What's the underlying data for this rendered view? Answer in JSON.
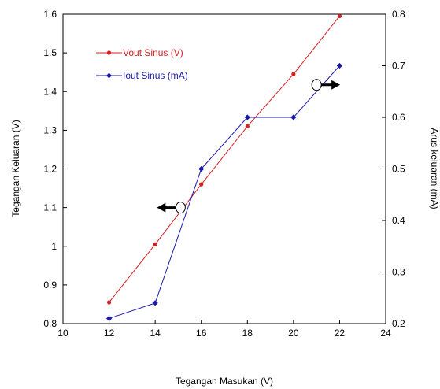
{
  "chart_data": {
    "type": "line",
    "title": "",
    "xlabel": "Tegangan Masukan (V)",
    "ylabel": "Tegangan Keluaran (V)",
    "y2label": "Arus keluaran (mA)",
    "xlim": [
      10,
      24
    ],
    "ylim": [
      0.8,
      1.6
    ],
    "y2lim": [
      0.2,
      0.8
    ],
    "xticks": [
      "10",
      "12",
      "14",
      "16",
      "18",
      "20",
      "22",
      "24"
    ],
    "yticks": [
      "0.8",
      "0.9",
      "1",
      "1.1",
      "1.2",
      "1.3",
      "1.4",
      "1.5",
      "1.6"
    ],
    "y2ticks": [
      "0.2",
      "0.3",
      "0.4",
      "0.5",
      "0.6",
      "0.7",
      "0.8"
    ],
    "grid": false,
    "legend_position": "top-left",
    "series": [
      {
        "name": "Vout Sinus (V)",
        "axis": "left",
        "marker": "circle",
        "color": "#d42020",
        "x": [
          12,
          14,
          16,
          18,
          20,
          22
        ],
        "y": [
          0.855,
          1.005,
          1.16,
          1.31,
          1.445,
          1.595
        ]
      },
      {
        "name": "Iout Sinus (mA)",
        "axis": "right",
        "marker": "diamond",
        "color": "#1a1aa8",
        "x": [
          12,
          14,
          16,
          18,
          20,
          22
        ],
        "y": [
          0.21,
          0.24,
          0.5,
          0.6,
          0.6,
          0.7
        ]
      }
    ],
    "annotations": [
      {
        "type": "arrow",
        "direction": "left",
        "axis_ref": "left",
        "x": 15.1,
        "y": 1.1
      },
      {
        "type": "arrow",
        "direction": "right",
        "axis_ref": "right",
        "x": 21.0,
        "y": 0.663
      }
    ]
  }
}
